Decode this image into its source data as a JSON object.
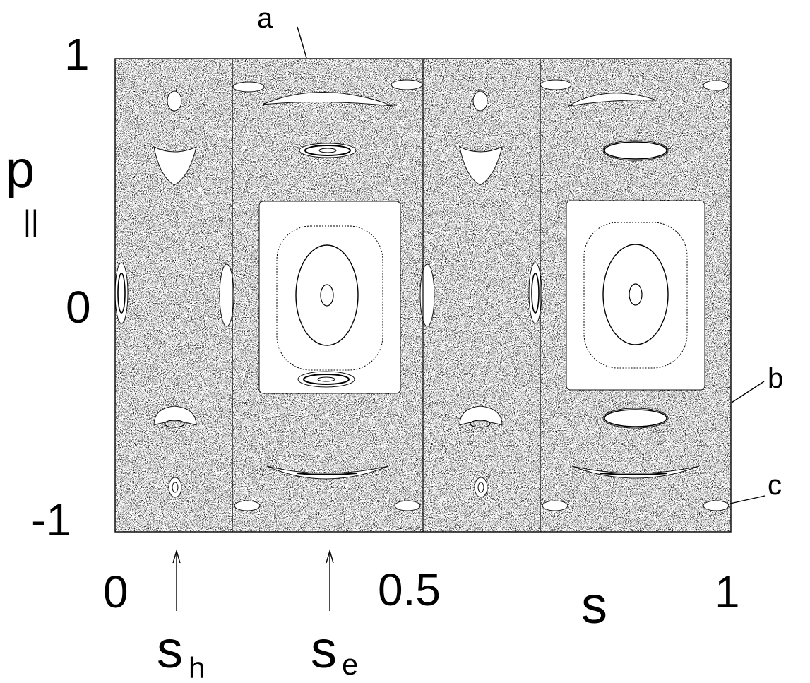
{
  "figure": {
    "y_tick_labels": [
      "1",
      "0",
      "-1"
    ],
    "x_tick_labels": [
      "0",
      "0.5",
      "1"
    ],
    "x_axis_label": "s",
    "y_axis_label_main": "p",
    "y_axis_label_sub": "||",
    "marker_h_main": "s",
    "marker_h_sub": "h",
    "marker_e_main": "s",
    "marker_e_sub": "e",
    "annotations": [
      "a",
      "b",
      "c"
    ],
    "x_range": [
      0,
      1
    ],
    "y_range": [
      -1,
      1
    ],
    "marker_positions_s": {
      "h": 0.1,
      "e": 0.35
    },
    "panel_divider_s": [
      0.19,
      0.5,
      0.69
    ]
  }
}
